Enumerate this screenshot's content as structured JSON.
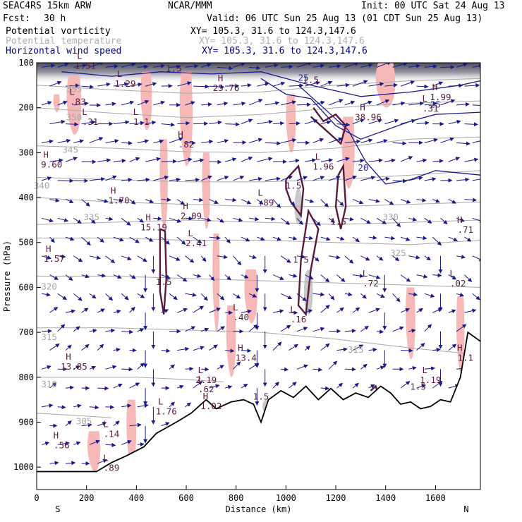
{
  "header": {
    "model": "SEAC4RS 15km ARW",
    "center": "NCAR/MMM",
    "init": "Init: 00 UTC Sat 24 Aug 13",
    "fcst_label": "Fcst:",
    "fcst_value": "30 h",
    "valid": "Valid: 06 UTC Sun 25 Aug 13 (01 CDT Sun 25 Aug 13)",
    "fields": [
      {
        "name": "Potential vorticity",
        "xy": "XY= 105.3, 31.6 to 124.3,147.6",
        "color": "#000000"
      },
      {
        "name": "Potential temperature",
        "xy": "XY= 105.3, 31.6 to 124.3,147.6",
        "color": "#b0b0b0"
      },
      {
        "name": "Horizontal wind speed",
        "xy": "XY= 105.3, 31.6 to 124.3,147.6",
        "color": "#000080"
      }
    ]
  },
  "chart_data": {
    "type": "cross-section",
    "xlabel": "Distance (km)",
    "ylabel": "Pressure (hPa)",
    "x_ticks": [
      0,
      200,
      400,
      600,
      800,
      1000,
      1200,
      1400,
      1600
    ],
    "y_ticks": [
      100,
      200,
      300,
      400,
      500,
      600,
      700,
      800,
      900,
      1000
    ],
    "xlim": [
      0,
      1780
    ],
    "ylim": [
      1050,
      100
    ],
    "left_end": "S",
    "right_end": "N",
    "terrain": [
      [
        0,
        1010
      ],
      [
        80,
        1010
      ],
      [
        160,
        1010
      ],
      [
        240,
        1010
      ],
      [
        300,
        990
      ],
      [
        360,
        975
      ],
      [
        430,
        955
      ],
      [
        480,
        925
      ],
      [
        560,
        900
      ],
      [
        620,
        880
      ],
      [
        680,
        850
      ],
      [
        720,
        870
      ],
      [
        780,
        855
      ],
      [
        830,
        850
      ],
      [
        870,
        860
      ],
      [
        900,
        900
      ],
      [
        930,
        850
      ],
      [
        980,
        830
      ],
      [
        1030,
        845
      ],
      [
        1080,
        820
      ],
      [
        1130,
        850
      ],
      [
        1180,
        825
      ],
      [
        1230,
        850
      ],
      [
        1280,
        835
      ],
      [
        1330,
        845
      ],
      [
        1380,
        820
      ],
      [
        1420,
        835
      ],
      [
        1460,
        860
      ],
      [
        1500,
        855
      ],
      [
        1540,
        870
      ],
      [
        1580,
        865
      ],
      [
        1620,
        850
      ],
      [
        1660,
        855
      ],
      [
        1700,
        800
      ],
      [
        1730,
        700
      ],
      [
        1780,
        720
      ]
    ],
    "theta_levels": [
      {
        "value": 355,
        "p": [
          [
            0,
            150
          ],
          [
            300,
            160
          ],
          [
            600,
            168
          ],
          [
            900,
            165
          ],
          [
            1200,
            150
          ],
          [
            1500,
            140
          ],
          [
            1780,
            135
          ]
        ]
      },
      {
        "value": 350,
        "p": [
          [
            0,
            200
          ],
          [
            300,
            212
          ],
          [
            600,
            222
          ],
          [
            900,
            215
          ],
          [
            1200,
            200
          ],
          [
            1500,
            190
          ],
          [
            1780,
            185
          ]
        ]
      },
      {
        "value": 345,
        "p": [
          [
            0,
            285
          ],
          [
            300,
            290
          ],
          [
            600,
            298
          ],
          [
            900,
            300
          ],
          [
            1200,
            290
          ],
          [
            1500,
            270
          ],
          [
            1780,
            265
          ]
        ]
      },
      {
        "value": 340,
        "p": [
          [
            0,
            355
          ],
          [
            300,
            360
          ],
          [
            600,
            365
          ],
          [
            900,
            365
          ],
          [
            1200,
            360
          ],
          [
            1500,
            350
          ],
          [
            1780,
            340
          ]
        ]
      },
      {
        "value": 335,
        "p": [
          [
            0,
            400
          ],
          [
            300,
            410
          ],
          [
            600,
            415
          ],
          [
            900,
            420
          ],
          [
            1200,
            420
          ],
          [
            1500,
            415
          ],
          [
            1780,
            410
          ]
        ]
      },
      {
        "value": 330,
        "p": [
          [
            0,
            460
          ],
          [
            300,
            455
          ],
          [
            600,
            450
          ],
          [
            900,
            455
          ],
          [
            1200,
            460
          ],
          [
            1500,
            455
          ],
          [
            1780,
            450
          ]
        ]
      },
      {
        "value": 325,
        "p": [
          [
            0,
            490
          ],
          [
            300,
            490
          ],
          [
            600,
            495
          ],
          [
            900,
            495
          ],
          [
            1200,
            500
          ],
          [
            1500,
            505
          ],
          [
            1780,
            495
          ]
        ]
      },
      {
        "value": 320,
        "p": [
          [
            0,
            575
          ],
          [
            300,
            575
          ],
          [
            600,
            580
          ],
          [
            900,
            585
          ],
          [
            1200,
            590
          ],
          [
            1500,
            595
          ],
          [
            1780,
            600
          ]
        ]
      },
      {
        "value": 315,
        "p": [
          [
            0,
            690
          ],
          [
            300,
            690
          ],
          [
            600,
            695
          ],
          [
            900,
            700
          ],
          [
            1200,
            715
          ],
          [
            1500,
            735
          ],
          [
            1780,
            750
          ]
        ]
      },
      {
        "value": 310,
        "p": [
          [
            0,
            800
          ],
          [
            200,
            800
          ],
          [
            400,
            800
          ],
          [
            600,
            805
          ],
          [
            750,
            810
          ]
        ]
      },
      {
        "value": 305,
        "p": [
          [
            0,
            880
          ],
          [
            150,
            885
          ],
          [
            300,
            890
          ]
        ]
      }
    ],
    "theta_labels": [
      {
        "text": "355",
        "x": 150,
        "p": 165
      },
      {
        "text": "350",
        "x": 150,
        "p": 228
      },
      {
        "text": "345",
        "x": 135,
        "p": 300
      },
      {
        "text": "340",
        "x": 20,
        "p": 380
      },
      {
        "text": "335",
        "x": 220,
        "p": 450
      },
      {
        "text": "330",
        "x": 1420,
        "p": 450
      },
      {
        "text": "325",
        "x": 1450,
        "p": 530
      },
      {
        "text": "320",
        "x": 50,
        "p": 605
      },
      {
        "text": "315",
        "x": 50,
        "p": 717
      },
      {
        "text": "315",
        "x": 1280,
        "p": 745
      },
      {
        "text": "310",
        "x": 50,
        "p": 822
      },
      {
        "text": "305",
        "x": 190,
        "p": 905
      }
    ],
    "pv_contour_labels": [
      {
        "text": "1.5",
        "x": 510,
        "p": 595
      },
      {
        "text": "1.5",
        "x": 1030,
        "p": 380
      },
      {
        "text": "1.5",
        "x": 1210,
        "p": 460
      },
      {
        "text": "1.5",
        "x": 1060,
        "p": 545
      },
      {
        "text": "1.5",
        "x": 900,
        "p": 850
      },
      {
        "text": "1.5",
        "x": 1530,
        "p": 828
      },
      {
        "text": "1.5",
        "x": 1100,
        "p": 145
      },
      {
        "text": "1.5",
        "x": 550,
        "p": 120
      }
    ],
    "extrema": [
      {
        "type": "L",
        "value": "1.51",
        "x": 195,
        "p": 110
      },
      {
        "type": "H",
        "value": "25.76",
        "x": 760,
        "p": 160
      },
      {
        "type": "L",
        "value": "1.29",
        "x": 355,
        "p": 150
      },
      {
        "type": "L",
        "value": ".83",
        "x": 165,
        "p": 190
      },
      {
        "type": "L",
        "value": ".31",
        "x": 215,
        "p": 235
      },
      {
        "type": "L",
        "value": "1.1",
        "x": 420,
        "p": 235
      },
      {
        "type": "H",
        "value": "9.60",
        "x": 60,
        "p": 330
      },
      {
        "type": "H",
        "value": ".82",
        "x": 600,
        "p": 285
      },
      {
        "type": "H",
        "value": "38.96",
        "x": 1330,
        "p": 225
      },
      {
        "type": "L",
        "value": "1.96",
        "x": 1150,
        "p": 335
      },
      {
        "type": "L",
        "value": ".89",
        "x": 920,
        "p": 415
      },
      {
        "type": "H",
        "value": "1.70",
        "x": 330,
        "p": 410
      },
      {
        "type": "H",
        "value": "15.19",
        "x": 470,
        "p": 470
      },
      {
        "type": "H",
        "value": "2.09",
        "x": 620,
        "p": 445
      },
      {
        "type": "L",
        "value": "2.41",
        "x": 640,
        "p": 505
      },
      {
        "type": "H",
        "value": "1.57",
        "x": 70,
        "p": 540
      },
      {
        "type": "L",
        "value": ".72",
        "x": 1340,
        "p": 595
      },
      {
        "type": "L",
        "value": ".02",
        "x": 1690,
        "p": 595
      },
      {
        "type": "H",
        "value": ".71",
        "x": 1720,
        "p": 475
      },
      {
        "type": "L",
        "value": ".40",
        "x": 820,
        "p": 670
      },
      {
        "type": "L",
        "value": ".16",
        "x": 1050,
        "p": 675
      },
      {
        "type": "H",
        "value": "13.85",
        "x": 150,
        "p": 780
      },
      {
        "type": "L",
        "value": "2.19",
        "x": 680,
        "p": 810
      },
      {
        "type": "L",
        "value": ".62",
        "x": 680,
        "p": 830
      },
      {
        "type": "H",
        "value": "13.4",
        "x": 840,
        "p": 760
      },
      {
        "type": "H",
        "value": "1.02",
        "x": 700,
        "p": 868
      },
      {
        "type": "L",
        "value": "1.76",
        "x": 520,
        "p": 880
      },
      {
        "type": "L",
        "value": "1.19",
        "x": 1580,
        "p": 810
      },
      {
        "type": "L",
        "value": ".14",
        "x": 300,
        "p": 930
      },
      {
        "type": "H",
        "value": ".56",
        "x": 100,
        "p": 955
      },
      {
        "type": "L",
        "value": ".89",
        "x": 300,
        "p": 1005
      },
      {
        "type": "H",
        "value": "1.1",
        "x": 1720,
        "p": 760
      },
      {
        "type": "L",
        "value": ".31",
        "x": 1580,
        "p": 205
      },
      {
        "type": "H",
        "value": "1.99",
        "x": 1620,
        "p": 180
      }
    ],
    "wind_contour_labels": [
      {
        "text": "25",
        "x": 1070,
        "p": 140
      },
      {
        "text": "20",
        "x": 1310,
        "p": 340
      },
      {
        "text": "25",
        "x": 1600,
        "p": 200
      }
    ],
    "pink_shading": [
      {
        "x": 440,
        "p0": 120,
        "p1": 250,
        "w": 35
      },
      {
        "x": 510,
        "p0": 270,
        "p1": 470,
        "w": 25
      },
      {
        "x": 600,
        "p0": 120,
        "p1": 330,
        "w": 40
      },
      {
        "x": 680,
        "p0": 300,
        "p1": 470,
        "w": 25
      },
      {
        "x": 720,
        "p0": 480,
        "p1": 700,
        "w": 22
      },
      {
        "x": 780,
        "p0": 640,
        "p1": 800,
        "w": 30
      },
      {
        "x": 860,
        "p0": 560,
        "p1": 680,
        "w": 40
      },
      {
        "x": 1020,
        "p0": 170,
        "p1": 300,
        "w": 30
      },
      {
        "x": 1250,
        "p0": 220,
        "p1": 380,
        "w": 40
      },
      {
        "x": 1400,
        "p0": 100,
        "p1": 200,
        "w": 60
      },
      {
        "x": 1500,
        "p0": 600,
        "p1": 760,
        "w": 30
      },
      {
        "x": 1700,
        "p0": 620,
        "p1": 790,
        "w": 25
      },
      {
        "x": 380,
        "p0": 850,
        "p1": 1000,
        "w": 30
      },
      {
        "x": 230,
        "p0": 920,
        "p1": 1010,
        "w": 40
      },
      {
        "x": 150,
        "p0": 130,
        "p1": 260,
        "w": 45
      },
      {
        "x": 80,
        "p0": 170,
        "p1": 210,
        "w": 20
      }
    ],
    "colors": {
      "pv": "#5a1a3c",
      "theta": "#a8a8a8",
      "wind": "#1a1a8c",
      "pink": "#f7b8b8",
      "terrain": "#000000"
    }
  }
}
